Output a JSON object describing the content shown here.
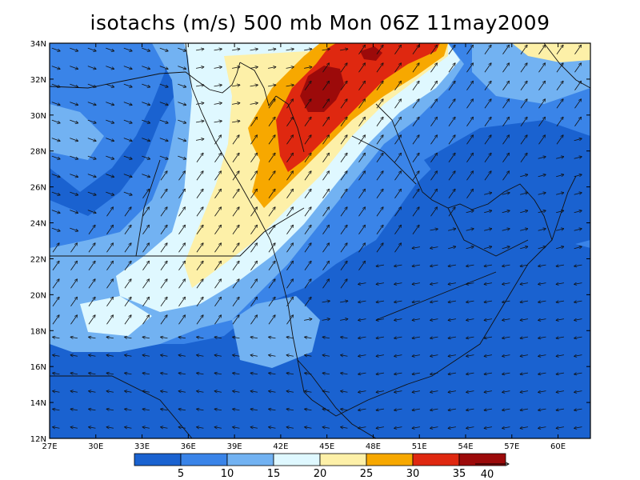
{
  "title": "isotachs (m/s) 500 mb Mon 06Z 11may2009",
  "lat_labels": [
    "34N",
    "32N",
    "30N",
    "28N",
    "26N",
    "24N",
    "22N",
    "20N",
    "18N",
    "16N",
    "14N",
    "12N"
  ],
  "lon_labels": [
    "27E",
    "30E",
    "33E",
    "36E",
    "39E",
    "42E",
    "45E",
    "48E",
    "51E",
    "54E",
    "57E",
    "60E"
  ],
  "colorbar": {
    "labels": [
      "5",
      "10",
      "15",
      "20",
      "25",
      "30",
      "35"
    ],
    "colors": [
      "#1a62d0",
      "#3a84e8",
      "#72b2f2",
      "#dff8ff",
      "#fdf0a8",
      "#f7a800",
      "#df2810",
      "#9c0a0a"
    ],
    "reference_vector_label": "40"
  },
  "legend_colors": {
    "lt5": "#1a62d0",
    "5to10": "#3a84e8",
    "10to15": "#72b2f2",
    "15to20": "#dff8ff",
    "20to25": "#fdf0a8",
    "25to30": "#f7a800",
    "30to35": "#df2810",
    "gt35": "#9c0a0a"
  }
}
